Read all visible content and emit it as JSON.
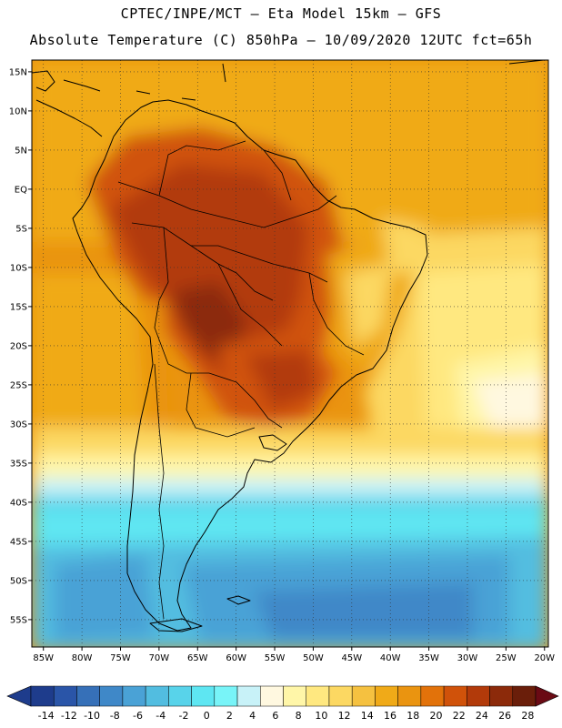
{
  "title": {
    "line1": "CPTEC/INPE/MCT –  Eta Model 15km – GFS",
    "line2": "Absolute Temperature (C) 850hPa – 10/09/2020 12UTC fct=65h"
  },
  "axes": {
    "lat_labels": [
      "15N",
      "10N",
      "5N",
      "EQ",
      "5S",
      "10S",
      "15S",
      "20S",
      "25S",
      "30S",
      "35S",
      "40S",
      "45S",
      "50S",
      "55S"
    ],
    "lat_values": [
      15,
      10,
      5,
      0,
      -5,
      -10,
      -15,
      -20,
      -25,
      -30,
      -35,
      -40,
      -45,
      -50,
      -55
    ],
    "lon_labels": [
      "85W",
      "80W",
      "75W",
      "70W",
      "65W",
      "60W",
      "55W",
      "50W",
      "45W",
      "40W",
      "35W",
      "30W",
      "25W",
      "20W"
    ],
    "lon_values": [
      -85,
      -80,
      -75,
      -70,
      -65,
      -60,
      -55,
      -50,
      -45,
      -40,
      -35,
      -30,
      -25,
      -20
    ],
    "lon_range": [
      -86.5,
      -19.5
    ],
    "lat_range": [
      -58.5,
      16.5
    ]
  },
  "colorbar": {
    "labels": [
      "-14",
      "-12",
      "-10",
      "-8",
      "-6",
      "-4",
      "-2",
      "0",
      "2",
      "4",
      "6",
      "8",
      "10",
      "12",
      "14",
      "16",
      "18",
      "20",
      "22",
      "24",
      "26",
      "28"
    ],
    "colors": [
      "#1e3c8c",
      "#2a55a8",
      "#3670b8",
      "#3f88c8",
      "#4aa2d6",
      "#52bde0",
      "#58d3ea",
      "#5ee6f2",
      "#78f4f8",
      "#c8f2f8",
      "#fff8e0",
      "#fff6a8",
      "#ffe880",
      "#fcd862",
      "#f5c140",
      "#f0aa18",
      "#ea9410",
      "#e2720a",
      "#d0520a",
      "#b23a0a",
      "#8c2a0a",
      "#6a1e0a"
    ]
  }
}
